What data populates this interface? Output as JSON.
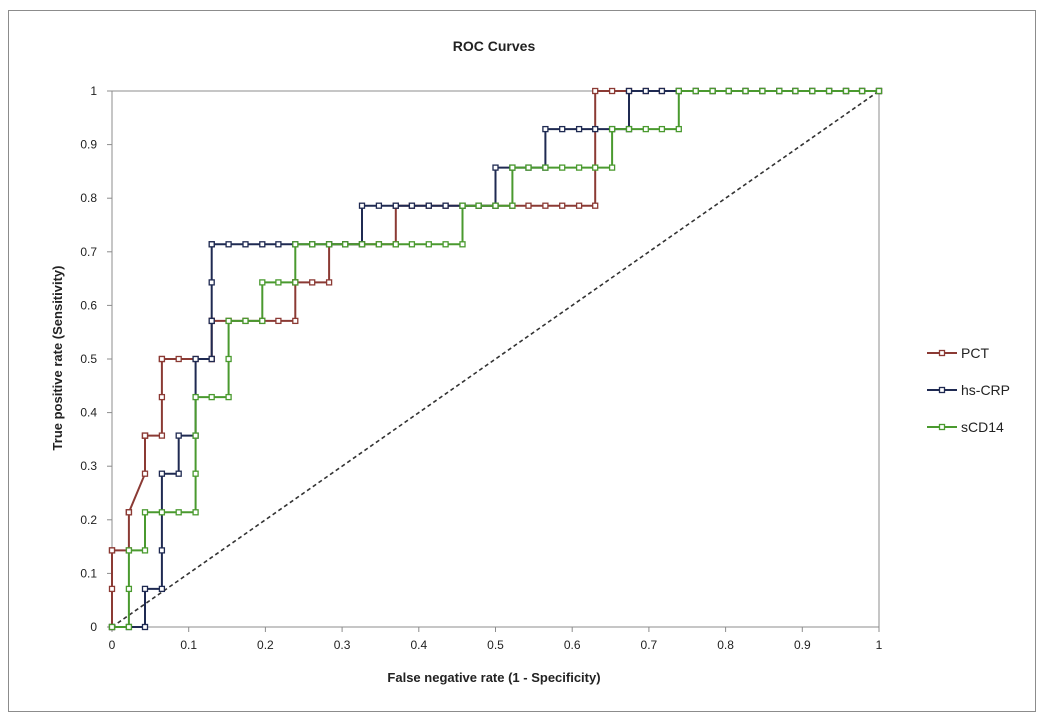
{
  "chart_data": {
    "type": "line",
    "title": "ROC Curves",
    "xlabel": "False negative rate (1 - Specificity)",
    "ylabel": "True positive rate (Sensitivity)",
    "xlim": [
      0,
      1
    ],
    "ylim": [
      0,
      1
    ],
    "xticks": [
      "0",
      "0.1",
      "0.2",
      "0.3",
      "0.4",
      "0.5",
      "0.6",
      "0.7",
      "0.8",
      "0.9",
      "1"
    ],
    "yticks": [
      "0",
      "0.1",
      "0.2",
      "0.3",
      "0.4",
      "0.5",
      "0.6",
      "0.7",
      "0.8",
      "0.9",
      "1"
    ],
    "grid": false,
    "legend_position": "right",
    "reference_line": {
      "x": [
        0,
        1
      ],
      "y": [
        0,
        1
      ],
      "style": "dashed",
      "color": "#333333"
    },
    "series": [
      {
        "name": "PCT",
        "color": "#8b3a34",
        "x": [
          0,
          0,
          0,
          0,
          0.022,
          0.022,
          0.022,
          0.022,
          0.043,
          0.043,
          0.043,
          0.043,
          0.065,
          0.065,
          0.065,
          0.065,
          0.087,
          0.109,
          0.13,
          0.13,
          0.13,
          0.13,
          0.152,
          0.174,
          0.196,
          0.217,
          0.239,
          0.239,
          0.239,
          0.261,
          0.283,
          0.283,
          0.304,
          0.326,
          0.348,
          0.37,
          0.37,
          0.391,
          0.413,
          0.435,
          0.457,
          0.478,
          0.5,
          0.522,
          0.543,
          0.565,
          0.587,
          0.609,
          0.63,
          0.63,
          0.652,
          0.674,
          0.696,
          0.717,
          0.739,
          0.761,
          0.783,
          0.804,
          0.826,
          0.848,
          0.87,
          0.891,
          0.913,
          0.935,
          0.957,
          0.978,
          1.0
        ],
        "y": [
          0,
          0.071,
          0.143,
          0.143,
          0.143,
          0.214,
          0.214,
          0.214,
          0.286,
          0.357,
          0.357,
          0.357,
          0.357,
          0.429,
          0.5,
          0.5,
          0.5,
          0.5,
          0.5,
          0.5,
          0.571,
          0.571,
          0.571,
          0.571,
          0.571,
          0.571,
          0.571,
          0.643,
          0.643,
          0.643,
          0.643,
          0.714,
          0.714,
          0.714,
          0.714,
          0.714,
          0.786,
          0.786,
          0.786,
          0.786,
          0.786,
          0.786,
          0.786,
          0.786,
          0.786,
          0.786,
          0.786,
          0.786,
          0.786,
          1.0,
          1.0,
          1.0,
          1.0,
          1.0,
          1.0,
          1.0,
          1.0,
          1.0,
          1.0,
          1.0,
          1.0,
          1.0,
          1.0,
          1.0,
          1.0,
          1.0,
          1.0
        ]
      },
      {
        "name": "hs-CRP",
        "color": "#1f2a52",
        "x": [
          0,
          0.022,
          0.043,
          0.043,
          0.065,
          0.065,
          0.065,
          0.087,
          0.087,
          0.109,
          0.109,
          0.13,
          0.13,
          0.13,
          0.13,
          0.13,
          0.152,
          0.174,
          0.196,
          0.217,
          0.239,
          0.261,
          0.283,
          0.304,
          0.326,
          0.326,
          0.348,
          0.37,
          0.391,
          0.413,
          0.435,
          0.457,
          0.478,
          0.5,
          0.5,
          0.522,
          0.543,
          0.565,
          0.565,
          0.587,
          0.609,
          0.63,
          0.652,
          0.674,
          0.674,
          0.696,
          0.717,
          0.739,
          0.761,
          0.783,
          0.804,
          0.826,
          0.848,
          0.87,
          0.891,
          0.913,
          0.935,
          0.957,
          0.978,
          1.0
        ],
        "y": [
          0,
          0,
          0,
          0.071,
          0.071,
          0.143,
          0.286,
          0.286,
          0.357,
          0.357,
          0.5,
          0.5,
          0.571,
          0.643,
          0.714,
          0.714,
          0.714,
          0.714,
          0.714,
          0.714,
          0.714,
          0.714,
          0.714,
          0.714,
          0.714,
          0.786,
          0.786,
          0.786,
          0.786,
          0.786,
          0.786,
          0.786,
          0.786,
          0.786,
          0.857,
          0.857,
          0.857,
          0.857,
          0.929,
          0.929,
          0.929,
          0.929,
          0.929,
          0.929,
          1.0,
          1.0,
          1.0,
          1.0,
          1.0,
          1.0,
          1.0,
          1.0,
          1.0,
          1.0,
          1.0,
          1.0,
          1.0,
          1.0,
          1.0,
          1.0
        ]
      },
      {
        "name": "sCD14",
        "color": "#4a9a2f",
        "x": [
          0,
          0.022,
          0.022,
          0.022,
          0.043,
          0.043,
          0.065,
          0.087,
          0.109,
          0.109,
          0.109,
          0.109,
          0.13,
          0.152,
          0.152,
          0.152,
          0.174,
          0.196,
          0.196,
          0.217,
          0.239,
          0.239,
          0.261,
          0.283,
          0.304,
          0.326,
          0.348,
          0.37,
          0.391,
          0.413,
          0.435,
          0.457,
          0.457,
          0.478,
          0.5,
          0.522,
          0.522,
          0.543,
          0.565,
          0.587,
          0.609,
          0.63,
          0.652,
          0.652,
          0.674,
          0.696,
          0.717,
          0.739,
          0.739,
          0.761,
          0.783,
          0.804,
          0.826,
          0.848,
          0.87,
          0.891,
          0.913,
          0.935,
          0.957,
          0.978,
          1.0
        ],
        "y": [
          0,
          0,
          0.071,
          0.143,
          0.143,
          0.214,
          0.214,
          0.214,
          0.214,
          0.286,
          0.357,
          0.429,
          0.429,
          0.429,
          0.5,
          0.571,
          0.571,
          0.571,
          0.643,
          0.643,
          0.643,
          0.714,
          0.714,
          0.714,
          0.714,
          0.714,
          0.714,
          0.714,
          0.714,
          0.714,
          0.714,
          0.714,
          0.786,
          0.786,
          0.786,
          0.786,
          0.857,
          0.857,
          0.857,
          0.857,
          0.857,
          0.857,
          0.857,
          0.929,
          0.929,
          0.929,
          0.929,
          0.929,
          1.0,
          1.0,
          1.0,
          1.0,
          1.0,
          1.0,
          1.0,
          1.0,
          1.0,
          1.0,
          1.0,
          1.0,
          1.0
        ]
      }
    ]
  }
}
